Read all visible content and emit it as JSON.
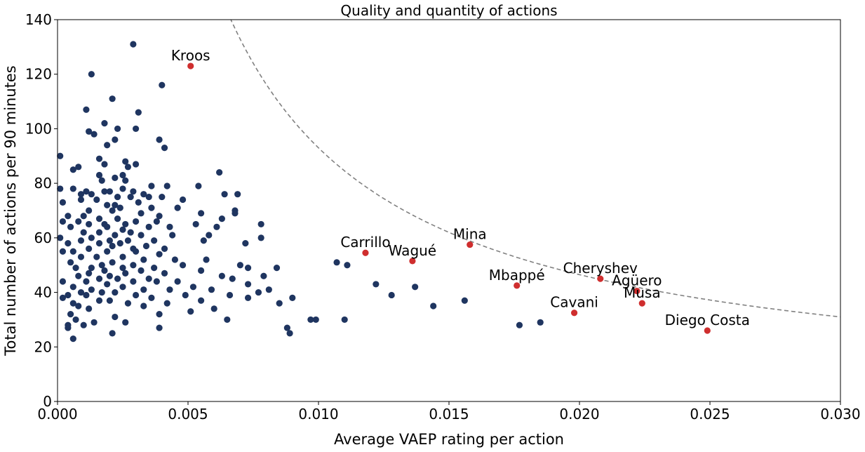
{
  "chart_data": {
    "type": "scatter",
    "title": "Quality and quantity of actions",
    "xlabel": "Average VAEP rating per action",
    "ylabel": "Total number of actions per 90 minutes",
    "xlim": [
      0,
      0.03
    ],
    "ylim": [
      0,
      140
    ],
    "xticks": [
      "0.000",
      "0.005",
      "0.010",
      "0.015",
      "0.020",
      "0.025",
      "0.030"
    ],
    "yticks": [
      "0",
      "20",
      "40",
      "60",
      "80",
      "100",
      "120",
      "140"
    ],
    "grid": false,
    "reference_curve": {
      "style": "dashed",
      "color": "#808080",
      "equation": "y = 0.93 / x"
    },
    "colors": {
      "others": "#1f3560",
      "highlighted": "#cf2e2e"
    },
    "highlighted": [
      {
        "name": "Kroos",
        "x": 0.0051,
        "y": 123
      },
      {
        "name": "Carrillo",
        "x": 0.0118,
        "y": 54.5
      },
      {
        "name": "Wagué",
        "x": 0.0136,
        "y": 51.5
      },
      {
        "name": "Mina",
        "x": 0.0158,
        "y": 57.5
      },
      {
        "name": "Mbappé",
        "x": 0.0176,
        "y": 42.5
      },
      {
        "name": "Cavani",
        "x": 0.0198,
        "y": 32.5
      },
      {
        "name": "Cheryshev",
        "x": 0.0208,
        "y": 45
      },
      {
        "name": "Agüero",
        "x": 0.0222,
        "y": 40.5
      },
      {
        "name": "Musa",
        "x": 0.0224,
        "y": 36
      },
      {
        "name": "Diego Costa",
        "x": 0.0249,
        "y": 26
      }
    ],
    "others": [
      [
        0.0029,
        131
      ],
      [
        0.0013,
        120
      ],
      [
        0.004,
        116
      ],
      [
        0.0021,
        111
      ],
      [
        0.0011,
        107
      ],
      [
        0.0031,
        106
      ],
      [
        0.0018,
        102
      ],
      [
        0.0023,
        100
      ],
      [
        0.003,
        100
      ],
      [
        0.0012,
        99
      ],
      [
        0.0014,
        98
      ],
      [
        0.0039,
        96
      ],
      [
        0.0022,
        96
      ],
      [
        0.0019,
        94
      ],
      [
        0.0041,
        93
      ],
      [
        0.0001,
        90
      ],
      [
        0.0016,
        89
      ],
      [
        0.0026,
        88
      ],
      [
        0.0018,
        87
      ],
      [
        0.0008,
        86
      ],
      [
        0.003,
        87
      ],
      [
        0.0027,
        86
      ],
      [
        0.0006,
        85
      ],
      [
        0.0062,
        84
      ],
      [
        0.0016,
        83
      ],
      [
        0.0025,
        83
      ],
      [
        0.0022,
        82
      ],
      [
        0.0017,
        81
      ],
      [
        0.0026,
        81
      ],
      [
        0.0054,
        79
      ],
      [
        0.0036,
        79
      ],
      [
        0.0042,
        79
      ],
      [
        0.0001,
        78
      ],
      [
        0.0006,
        78
      ],
      [
        0.0025,
        78
      ],
      [
        0.0011,
        77
      ],
      [
        0.0018,
        77
      ],
      [
        0.002,
        77
      ],
      [
        0.0029,
        77
      ],
      [
        0.0033,
        76
      ],
      [
        0.0064,
        76
      ],
      [
        0.0069,
        76
      ],
      [
        0.0009,
        76
      ],
      [
        0.0013,
        76
      ],
      [
        0.0023,
        75
      ],
      [
        0.0028,
        75
      ],
      [
        0.0035,
        75
      ],
      [
        0.0048,
        74
      ],
      [
        0.004,
        75
      ],
      [
        0.0015,
        74
      ],
      [
        0.0009,
        74
      ],
      [
        0.0031,
        73
      ],
      [
        0.0002,
        73
      ],
      [
        0.0022,
        72
      ],
      [
        0.0019,
        72
      ],
      [
        0.0024,
        71
      ],
      [
        0.0036,
        71
      ],
      [
        0.0046,
        71
      ],
      [
        0.0068,
        70
      ],
      [
        0.0012,
        70
      ],
      [
        0.0021,
        70
      ],
      [
        0.0032,
        69
      ],
      [
        0.0055,
        69
      ],
      [
        0.0068,
        69
      ],
      [
        0.0004,
        68
      ],
      [
        0.001,
        68
      ],
      [
        0.0039,
        68
      ],
      [
        0.0063,
        67
      ],
      [
        0.0016,
        67
      ],
      [
        0.0023,
        67
      ],
      [
        0.003,
        66
      ],
      [
        0.0008,
        66
      ],
      [
        0.0038,
        66
      ],
      [
        0.0002,
        66
      ],
      [
        0.0018,
        65
      ],
      [
        0.0026,
        65
      ],
      [
        0.0053,
        65
      ],
      [
        0.0078,
        65
      ],
      [
        0.0012,
        65
      ],
      [
        0.0035,
        64
      ],
      [
        0.0005,
        64
      ],
      [
        0.0019,
        64
      ],
      [
        0.0043,
        64
      ],
      [
        0.0061,
        64
      ],
      [
        0.0025,
        63
      ],
      [
        0.0028,
        62
      ],
      [
        0.001,
        62
      ],
      [
        0.0016,
        62
      ],
      [
        0.0022,
        61
      ],
      [
        0.0032,
        61
      ],
      [
        0.0058,
        61
      ],
      [
        0.0044,
        61
      ],
      [
        0.0001,
        60
      ],
      [
        0.0013,
        60
      ],
      [
        0.002,
        59
      ],
      [
        0.0027,
        59
      ],
      [
        0.0037,
        59
      ],
      [
        0.0056,
        59
      ],
      [
        0.0078,
        60
      ],
      [
        0.0009,
        59
      ],
      [
        0.0024,
        58
      ],
      [
        0.0016,
        58
      ],
      [
        0.0072,
        58
      ],
      [
        0.0004,
        58
      ],
      [
        0.0034,
        57
      ],
      [
        0.0021,
        57
      ],
      [
        0.0029,
        56
      ],
      [
        0.0041,
        56
      ],
      [
        0.0012,
        56
      ],
      [
        0.0006,
        55
      ],
      [
        0.0019,
        55
      ],
      [
        0.003,
        55
      ],
      [
        0.0002,
        55
      ],
      [
        0.0039,
        54
      ],
      [
        0.0025,
        53
      ],
      [
        0.0015,
        53
      ],
      [
        0.0009,
        53
      ],
      [
        0.0045,
        52
      ],
      [
        0.0057,
        52
      ],
      [
        0.0033,
        52
      ],
      [
        0.0005,
        51
      ],
      [
        0.0021,
        51
      ],
      [
        0.0017,
        50
      ],
      [
        0.0029,
        50
      ],
      [
        0.007,
        50
      ],
      [
        0.0048,
        50
      ],
      [
        0.0013,
        49
      ],
      [
        0.0037,
        49
      ],
      [
        0.0025,
        49
      ],
      [
        0.0007,
        49
      ],
      [
        0.0084,
        49
      ],
      [
        0.0073,
        49
      ],
      [
        0.0018,
        48
      ],
      [
        0.0032,
        48
      ],
      [
        0.0055,
        48
      ],
      [
        0.0012,
        47
      ],
      [
        0.0026,
        47
      ],
      [
        0.0041,
        47
      ],
      [
        0.0063,
        46
      ],
      [
        0.0079,
        46
      ],
      [
        0.002,
        46
      ],
      [
        0.0008,
        46
      ],
      [
        0.0035,
        45
      ],
      [
        0.0016,
        45
      ],
      [
        0.0023,
        45
      ],
      [
        0.0067,
        45
      ],
      [
        0.0002,
        44
      ],
      [
        0.0029,
        44
      ],
      [
        0.0046,
        44
      ],
      [
        0.0011,
        44
      ],
      [
        0.0038,
        44
      ],
      [
        0.0019,
        43
      ],
      [
        0.0073,
        43
      ],
      [
        0.0052,
        42
      ],
      [
        0.0006,
        42
      ],
      [
        0.0025,
        42
      ],
      [
        0.0081,
        41
      ],
      [
        0.0033,
        41
      ],
      [
        0.0013,
        41
      ],
      [
        0.0043,
        41
      ],
      [
        0.0059,
        41
      ],
      [
        0.0009,
        40
      ],
      [
        0.0022,
        40
      ],
      [
        0.0017,
        40
      ],
      [
        0.0077,
        40
      ],
      [
        0.0004,
        39
      ],
      [
        0.003,
        39
      ],
      [
        0.0049,
        39
      ],
      [
        0.0066,
        39
      ],
      [
        0.0011,
        39
      ],
      [
        0.0036,
        38
      ],
      [
        0.0002,
        38
      ],
      [
        0.0073,
        38
      ],
      [
        0.009,
        38
      ],
      [
        0.002,
        37
      ],
      [
        0.0016,
        37
      ],
      [
        0.0055,
        37
      ],
      [
        0.0027,
        36
      ],
      [
        0.0006,
        36
      ],
      [
        0.0085,
        36
      ],
      [
        0.0042,
        36
      ],
      [
        0.0033,
        35
      ],
      [
        0.0008,
        35
      ],
      [
        0.006,
        34
      ],
      [
        0.0012,
        34
      ],
      [
        0.0051,
        33
      ],
      [
        0.0039,
        32
      ],
      [
        0.0005,
        32
      ],
      [
        0.0022,
        31
      ],
      [
        0.0065,
        30
      ],
      [
        0.0097,
        30
      ],
      [
        0.0099,
        30
      ],
      [
        0.011,
        30
      ],
      [
        0.0007,
        30
      ],
      [
        0.0014,
        29
      ],
      [
        0.0026,
        29
      ],
      [
        0.0088,
        27
      ],
      [
        0.0004,
        27
      ],
      [
        0.0039,
        27
      ],
      [
        0.0021,
        25
      ],
      [
        0.0089,
        25
      ],
      [
        0.0006,
        23
      ],
      [
        0.0004,
        28
      ],
      [
        0.001,
        28
      ],
      [
        0.0107,
        51
      ],
      [
        0.0111,
        50
      ],
      [
        0.0122,
        43
      ],
      [
        0.0128,
        39
      ],
      [
        0.0137,
        42
      ],
      [
        0.0144,
        35
      ],
      [
        0.0156,
        37
      ],
      [
        0.0177,
        28
      ],
      [
        0.0185,
        29
      ]
    ]
  }
}
